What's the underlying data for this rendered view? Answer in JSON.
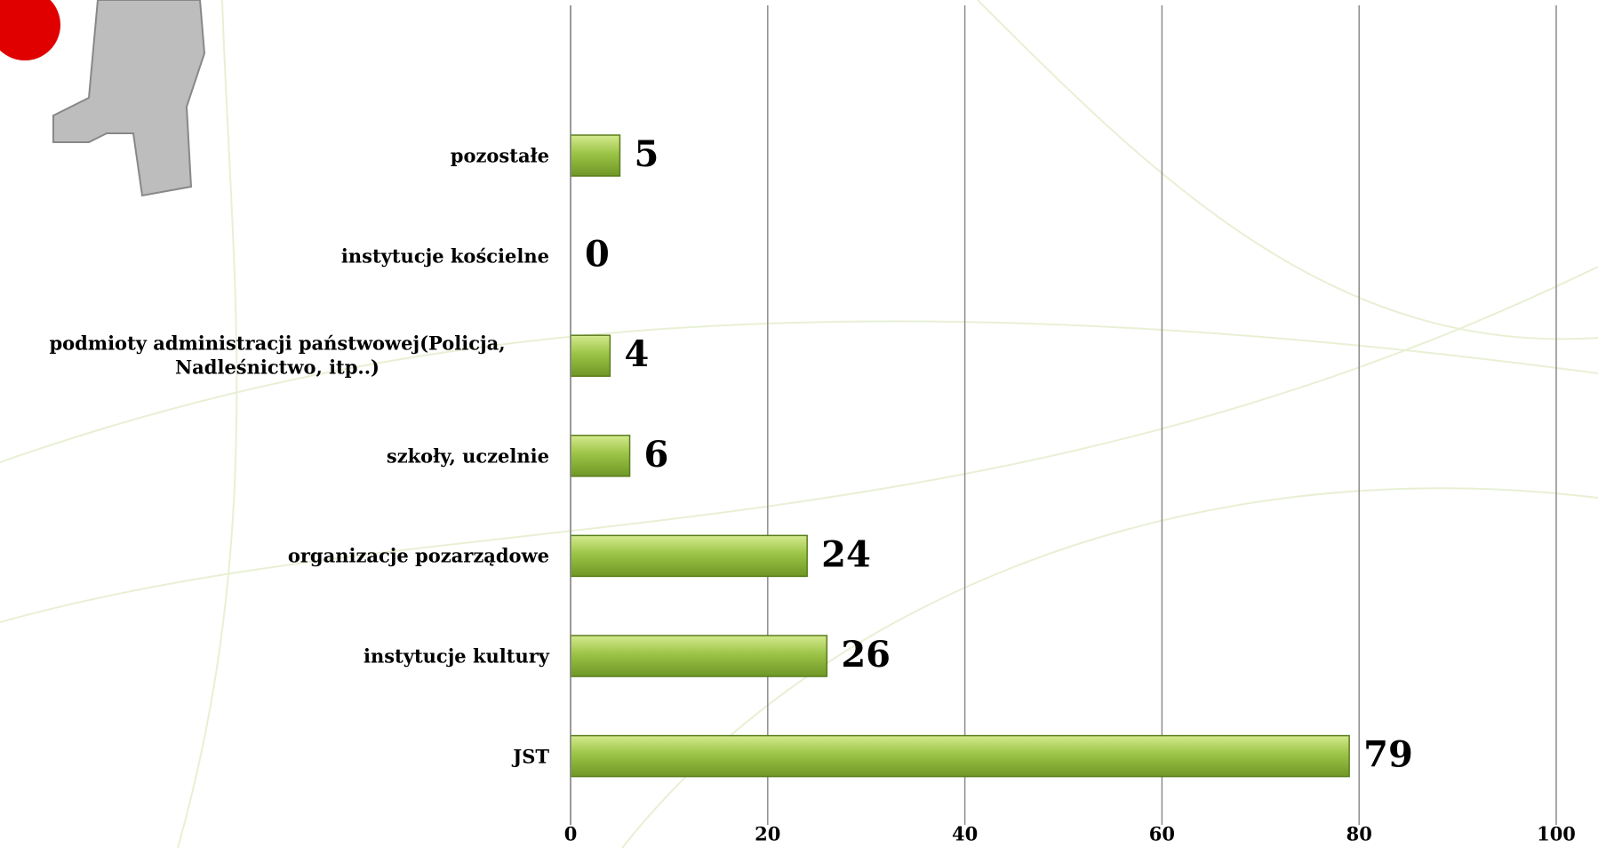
{
  "chart_data": {
    "type": "bar",
    "orientation": "horizontal",
    "categories": [
      "pozostałe",
      "instytucje kościelne",
      "podmioty administracji państwowej(Policja, Nadleśnictwo, itp..)",
      "szkoły, uczelnie",
      "organizacje pozarządowe",
      "instytucje kultury",
      "JST"
    ],
    "values": [
      5,
      0,
      4,
      6,
      24,
      26,
      79
    ],
    "color": "#9cc447",
    "xlim": [
      0,
      100
    ],
    "xticks": [
      0,
      20,
      40,
      60,
      80,
      100
    ],
    "grid": true
  }
}
